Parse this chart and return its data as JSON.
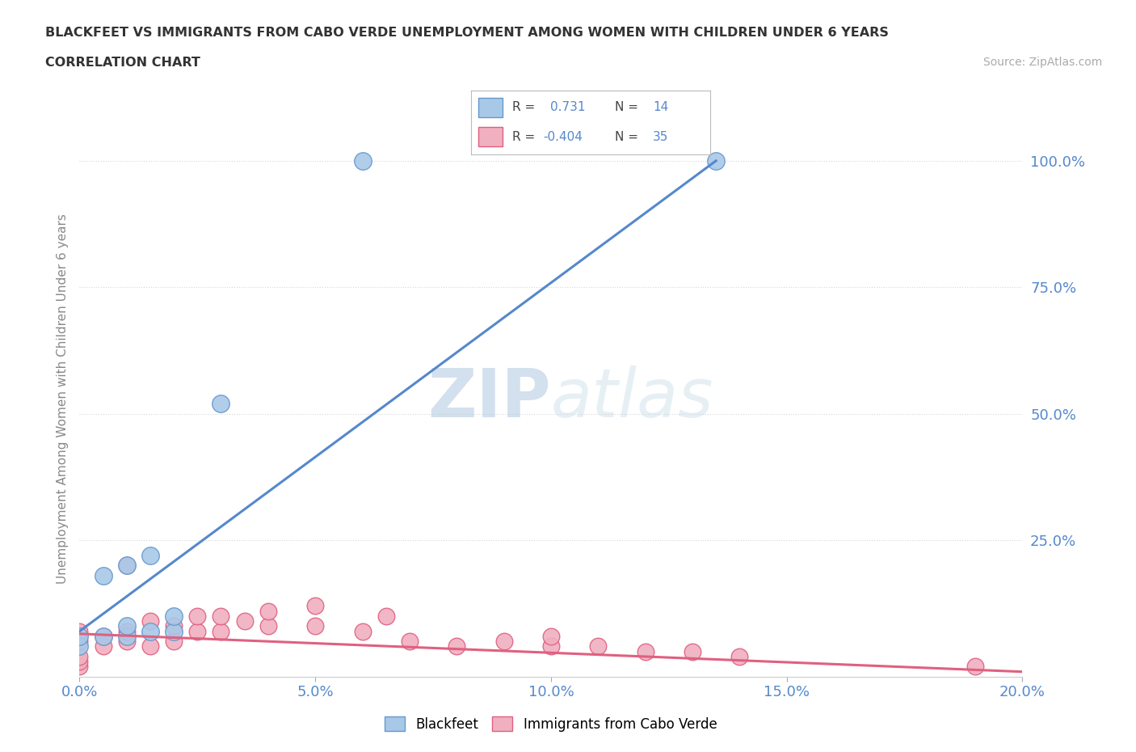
{
  "title_line1": "BLACKFEET VS IMMIGRANTS FROM CABO VERDE UNEMPLOYMENT AMONG WOMEN WITH CHILDREN UNDER 6 YEARS",
  "title_line2": "CORRELATION CHART",
  "source": "Source: ZipAtlas.com",
  "ylabel": "Unemployment Among Women with Children Under 6 years",
  "xlim": [
    0.0,
    0.2
  ],
  "ylim": [
    -0.02,
    1.08
  ],
  "xtick_labels": [
    "0.0%",
    "5.0%",
    "10.0%",
    "15.0%",
    "20.0%"
  ],
  "xtick_vals": [
    0.0,
    0.05,
    0.1,
    0.15,
    0.2
  ],
  "ytick_labels": [
    "25.0%",
    "50.0%",
    "75.0%",
    "100.0%"
  ],
  "ytick_vals": [
    0.25,
    0.5,
    0.75,
    1.0
  ],
  "blue_R": 0.731,
  "blue_N": 14,
  "pink_R": -0.404,
  "pink_N": 35,
  "blue_color": "#a8c8e8",
  "pink_color": "#f0b0c0",
  "blue_edge_color": "#6699cc",
  "pink_edge_color": "#e06080",
  "blue_line_color": "#5588cc",
  "pink_line_color": "#e06080",
  "watermark_zip": "ZIP",
  "watermark_atlas": "atlas",
  "blue_scatter_x": [
    0.0,
    0.0,
    0.005,
    0.005,
    0.01,
    0.01,
    0.01,
    0.015,
    0.015,
    0.02,
    0.02,
    0.03,
    0.06,
    0.135
  ],
  "blue_scatter_y": [
    0.04,
    0.06,
    0.06,
    0.18,
    0.06,
    0.08,
    0.2,
    0.07,
    0.22,
    0.07,
    0.1,
    0.52,
    1.0,
    1.0
  ],
  "pink_scatter_x": [
    0.0,
    0.0,
    0.0,
    0.0,
    0.0,
    0.005,
    0.005,
    0.01,
    0.01,
    0.01,
    0.015,
    0.015,
    0.02,
    0.02,
    0.025,
    0.025,
    0.03,
    0.03,
    0.035,
    0.04,
    0.04,
    0.05,
    0.05,
    0.06,
    0.065,
    0.07,
    0.08,
    0.09,
    0.1,
    0.1,
    0.11,
    0.12,
    0.13,
    0.14,
    0.19
  ],
  "pink_scatter_y": [
    0.0,
    0.01,
    0.02,
    0.05,
    0.07,
    0.04,
    0.06,
    0.05,
    0.07,
    0.2,
    0.04,
    0.09,
    0.05,
    0.08,
    0.07,
    0.1,
    0.07,
    0.1,
    0.09,
    0.08,
    0.11,
    0.08,
    0.12,
    0.07,
    0.1,
    0.05,
    0.04,
    0.05,
    0.04,
    0.06,
    0.04,
    0.03,
    0.03,
    0.02,
    0.0
  ],
  "blue_line_x": [
    0.0,
    0.135
  ],
  "blue_line_y": [
    0.07,
    1.0
  ],
  "pink_line_x": [
    0.0,
    0.2
  ],
  "pink_line_y": [
    0.065,
    -0.01
  ],
  "background_color": "#ffffff",
  "grid_color": "#cccccc",
  "title_color": "#333333",
  "axis_label_color": "#888888",
  "tick_color": "#5588cc"
}
